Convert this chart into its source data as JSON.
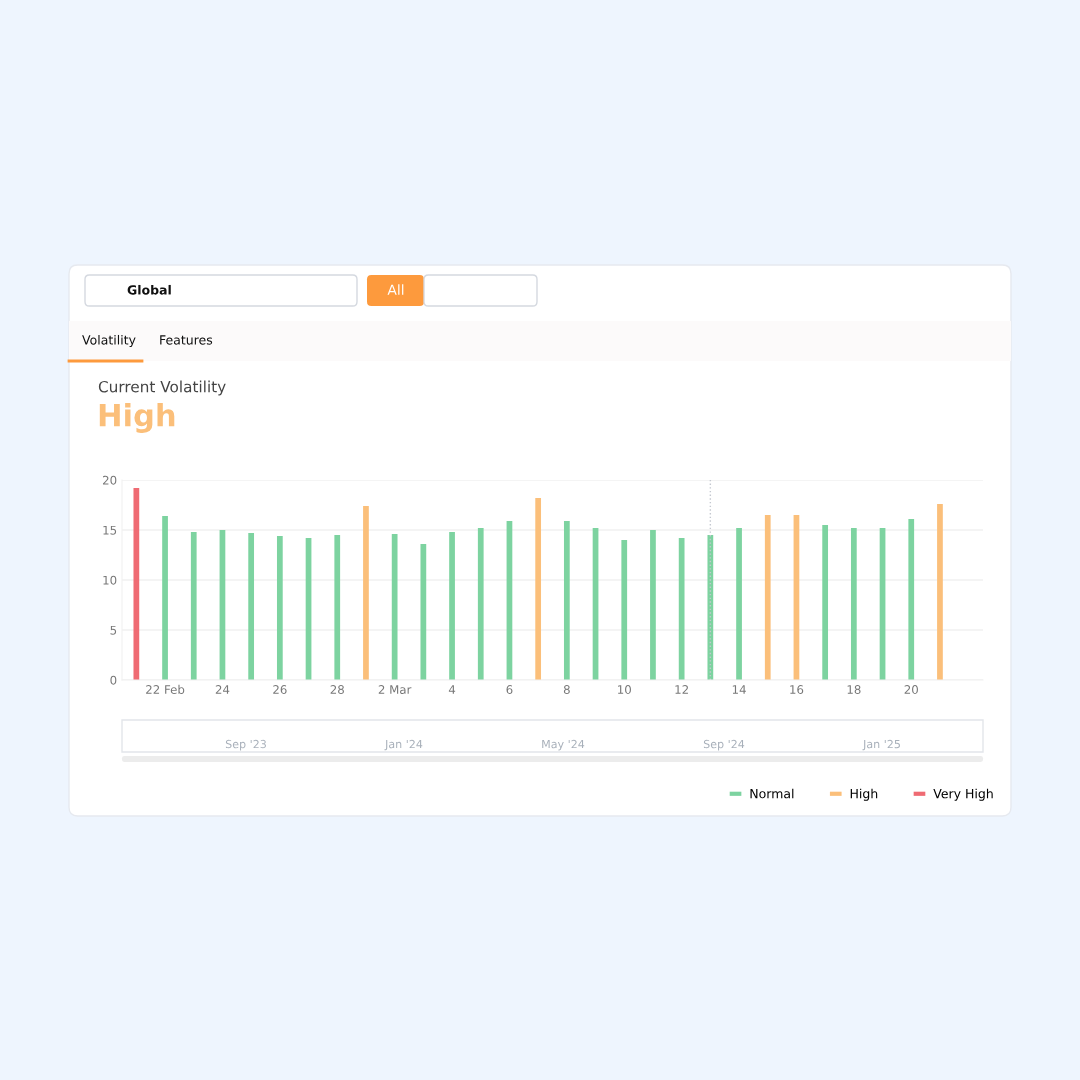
{
  "chart_data": {
    "type": "bar",
    "title": "Current Volatility",
    "subtitle": "High",
    "x": [
      "2025-02-21",
      "2025-02-22",
      "2025-02-23",
      "2025-02-24",
      "2025-02-25",
      "2025-02-26",
      "2025-02-27",
      "2025-02-28",
      "2025-03-01",
      "2025-03-02",
      "2025-03-03",
      "2025-03-04",
      "2025-03-05",
      "2025-03-06",
      "2025-03-07",
      "2025-03-08",
      "2025-03-09",
      "2025-03-10",
      "2025-03-11",
      "2025-03-12",
      "2025-03-13",
      "2025-03-14",
      "2025-03-15",
      "2025-03-16",
      "2025-03-17",
      "2025-03-18",
      "2025-03-19",
      "2025-03-20",
      "2025-03-21"
    ],
    "stacked": true,
    "series": [
      {
        "name": "Normal",
        "color": "#7dd3a0",
        "values": [
          null,
          16.4,
          14.8,
          15.0,
          14.7,
          14.4,
          14.2,
          14.5,
          null,
          14.6,
          13.6,
          14.8,
          15.2,
          15.9,
          null,
          15.9,
          15.2,
          14.0,
          15.0,
          14.2,
          14.5,
          15.2,
          null,
          null,
          15.5,
          15.2,
          15.2,
          16.1,
          null
        ]
      },
      {
        "name": "High",
        "color": "#fbbf7a",
        "values": [
          null,
          null,
          null,
          null,
          null,
          null,
          null,
          null,
          17.4,
          null,
          null,
          null,
          null,
          null,
          18.2,
          null,
          null,
          null,
          null,
          null,
          null,
          null,
          16.5,
          16.5,
          null,
          null,
          null,
          null,
          17.6
        ]
      },
      {
        "name": "Very High",
        "color": "#ef6b73",
        "values": [
          19.2,
          null,
          null,
          null,
          null,
          null,
          null,
          null,
          null,
          null,
          null,
          null,
          null,
          null,
          null,
          null,
          null,
          null,
          null,
          null,
          null,
          null,
          null,
          null,
          null,
          null,
          null,
          null,
          null
        ]
      }
    ],
    "xlim": [
      "2025-02-20T12:00",
      "2025-03-22T12:00"
    ],
    "xticks": [
      {
        "value": "2025-02-22",
        "label": "22 Feb"
      },
      {
        "value": "2025-02-24",
        "label": "24"
      },
      {
        "value": "2025-02-26",
        "label": "26"
      },
      {
        "value": "2025-02-28",
        "label": "28"
      },
      {
        "value": "2025-03-02",
        "label": "2 Mar"
      },
      {
        "value": "2025-03-04",
        "label": "4"
      },
      {
        "value": "2025-03-06",
        "label": "6"
      },
      {
        "value": "2025-03-08",
        "label": "8"
      },
      {
        "value": "2025-03-10",
        "label": "10"
      },
      {
        "value": "2025-03-12",
        "label": "12"
      },
      {
        "value": "2025-03-14",
        "label": "14"
      },
      {
        "value": "2025-03-16",
        "label": "16"
      },
      {
        "value": "2025-03-18",
        "label": "18"
      },
      {
        "value": "2025-03-20",
        "label": "20"
      }
    ],
    "ylim": [
      0,
      20
    ],
    "yticks": [
      0,
      5,
      10,
      15,
      20
    ],
    "grid": "y",
    "legend": "bottom right",
    "ref_lines": [
      {
        "axis": "x",
        "value": "2025-03-13",
        "color": "#c4c8d0",
        "line_style": "dotted"
      }
    ],
    "annotations": [
      "Global",
      "All",
      "Volatility",
      "Features",
      "Sep '23",
      "Jan '24",
      "May '24",
      "Sep '24",
      "Jan '25"
    ]
  }
}
